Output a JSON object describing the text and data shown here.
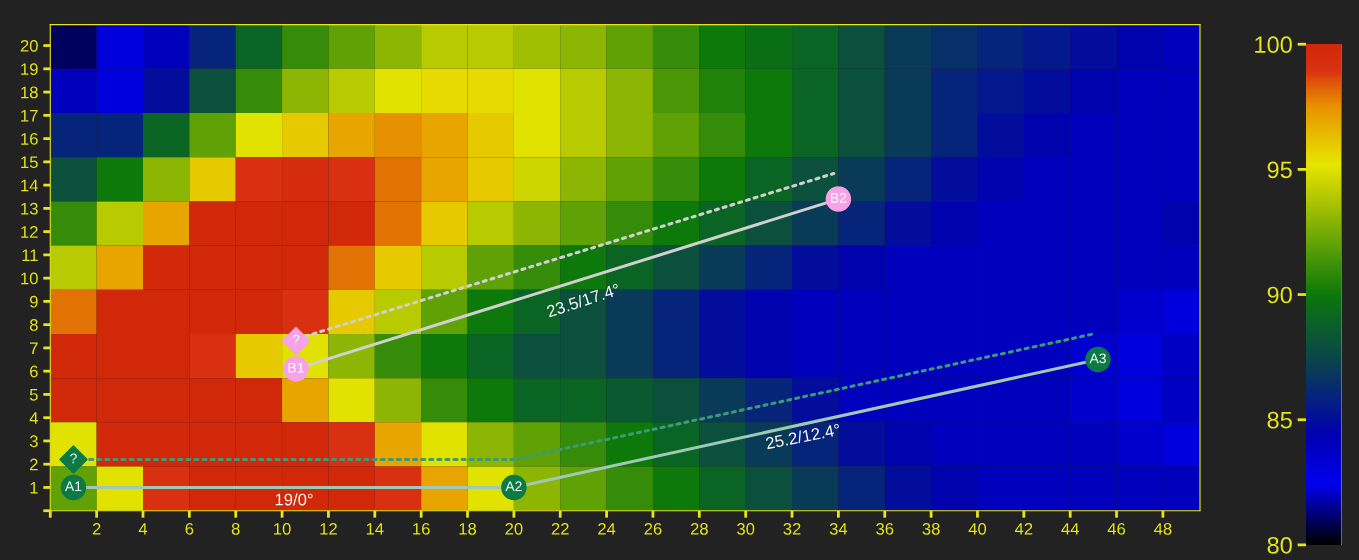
{
  "chart_data": {
    "type": "heatmap",
    "x": [
      1,
      3,
      5,
      7,
      9,
      11,
      13,
      15,
      17,
      19,
      21,
      23,
      25,
      27,
      29,
      31,
      33,
      35,
      37,
      39,
      41,
      43,
      45,
      47,
      49
    ],
    "y": [
      19.95,
      18.05,
      16.15,
      14.25,
      12.35,
      10.45,
      8.55,
      6.65,
      4.75,
      2.85,
      0.95
    ],
    "cells": [
      [
        81,
        83,
        84,
        86,
        89,
        91,
        92,
        93,
        94,
        94,
        93.5,
        93,
        92,
        91,
        90,
        89.5,
        89,
        88,
        87,
        86.5,
        86,
        85.5,
        85,
        84.5,
        84
      ],
      [
        84,
        83,
        85,
        88,
        91,
        93,
        94,
        95,
        95.5,
        95.5,
        95,
        94,
        93,
        91.5,
        90.5,
        90,
        89,
        88,
        87,
        86,
        85.5,
        85,
        84.5,
        84,
        84
      ],
      [
        86,
        86,
        89,
        92,
        95,
        96,
        97,
        97.5,
        97,
        96,
        95,
        94,
        93,
        92,
        91,
        90,
        89,
        88,
        87,
        86,
        85,
        84.5,
        84,
        84,
        84
      ],
      [
        88,
        90,
        93,
        96,
        99,
        99.5,
        99,
        98,
        97,
        96,
        94.5,
        93,
        92,
        91,
        90,
        89,
        88,
        87,
        86,
        85,
        84.5,
        84,
        84,
        84,
        84
      ],
      [
        91,
        94,
        97,
        100,
        100,
        100,
        100,
        98,
        96,
        94,
        93,
        92,
        91,
        90,
        89,
        88,
        87,
        86,
        85,
        84.5,
        84,
        84,
        84,
        84,
        84.5
      ],
      [
        94,
        97,
        100,
        100,
        100,
        100,
        98,
        96,
        94,
        92,
        91,
        90,
        89,
        88,
        87,
        86,
        85,
        84.5,
        84,
        84,
        84,
        84,
        84,
        84,
        84
      ],
      [
        98,
        100,
        100,
        100,
        100,
        99,
        96,
        94,
        92,
        90,
        89,
        88,
        87,
        86,
        85,
        84.5,
        84,
        84,
        84,
        84,
        84,
        84,
        84,
        83.5,
        83
      ],
      [
        100,
        100,
        100,
        99,
        96,
        95,
        93,
        91,
        90,
        89,
        88,
        88,
        87,
        86,
        85,
        84.5,
        84,
        84,
        84,
        84,
        84,
        84,
        83.5,
        83,
        82
      ],
      [
        100,
        100,
        100,
        100,
        100,
        97,
        95,
        93,
        91,
        90,
        89,
        89,
        88.5,
        88,
        87,
        86,
        85,
        84,
        84,
        84,
        84,
        84,
        83.5,
        83,
        82
      ],
      [
        95,
        100,
        100,
        100,
        100,
        100,
        99,
        97,
        95,
        93,
        92,
        91,
        90,
        89,
        88,
        87,
        86,
        85,
        84.5,
        84,
        84,
        84,
        84,
        83.5,
        83
      ],
      [
        92,
        95,
        99,
        100,
        100,
        100,
        100,
        99,
        97,
        95,
        93,
        92,
        91,
        90,
        89,
        88,
        87,
        86,
        85,
        84.5,
        84,
        84,
        84,
        84,
        84
      ]
    ],
    "clim": [
      80,
      100
    ],
    "cticks": [
      80,
      85,
      90,
      95,
      100
    ],
    "xlim": [
      0,
      49.6
    ],
    "ylim": [
      0,
      20.9
    ],
    "xticks": [
      {
        "value": 0,
        "label": null
      },
      2,
      4,
      6,
      8,
      10,
      12,
      14,
      16,
      18,
      20,
      22,
      24,
      26,
      28,
      30,
      32,
      34,
      36,
      38,
      40,
      42,
      44,
      46,
      48
    ],
    "yticks": [
      {
        "value": 0,
        "label": null
      },
      1,
      2,
      3,
      4,
      5,
      6,
      7,
      8,
      9,
      10,
      11,
      12,
      13,
      14,
      15,
      16,
      17,
      18,
      19,
      20
    ],
    "grid": false,
    "series": [
      {
        "type": "line",
        "x": [
          1,
          20,
          45.2
        ],
        "values": [
          1,
          1,
          6.5
        ],
        "color": "#9fc9b5",
        "line_style": "solid",
        "marker": "none"
      },
      {
        "type": "line",
        "x": [
          1,
          20,
          45
        ],
        "values": [
          2.2,
          2.2,
          7.6
        ],
        "color": "#3a9a7a",
        "line_style": "dotted",
        "marker": "none"
      },
      {
        "type": "line",
        "x": [
          10.6,
          34
        ],
        "values": [
          6.1,
          13.4
        ],
        "color": "#d0d0d0",
        "line_style": "solid",
        "marker": "none"
      },
      {
        "type": "line",
        "x": [
          11,
          33.8
        ],
        "values": [
          7.5,
          14.5
        ],
        "color": "#d0d0d0",
        "line_style": "dotted",
        "marker": "none"
      },
      {
        "type": "scatter",
        "x": [
          1,
          20,
          45.2
        ],
        "values": [
          1,
          1,
          6.5
        ],
        "color": "#0b7a45",
        "marker": "circle",
        "value_labels": [
          "A1",
          "A2",
          "A3"
        ]
      },
      {
        "type": "scatter",
        "x": [
          1
        ],
        "values": [
          2.2
        ],
        "color": "#0b7a45",
        "marker": "diamond",
        "value_labels": [
          "?"
        ]
      },
      {
        "type": "scatter",
        "x": [
          10.6,
          34
        ],
        "values": [
          6.1,
          13.4
        ],
        "color": "#f7a1e8",
        "marker": "circle",
        "value_labels": [
          "B1",
          "B2"
        ]
      },
      {
        "type": "scatter",
        "x": [
          10.6
        ],
        "values": [
          7.3
        ],
        "color": "#f7a1e8",
        "marker": "diamond",
        "value_labels": [
          "?"
        ]
      }
    ],
    "annotations": [
      "19/0°",
      "23.5/17.4°",
      "25.2/12.4°"
    ]
  }
}
